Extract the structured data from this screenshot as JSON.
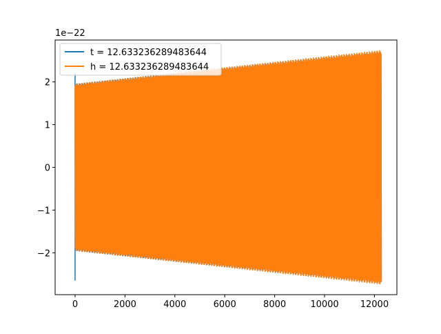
{
  "chart_data": {
    "type": "line",
    "title": "",
    "xlabel": "",
    "ylabel": "",
    "y_offset_label": "1e−22",
    "xlim": [
      -800,
      12900
    ],
    "ylim": [
      -2.98,
      2.98
    ],
    "x_ticks": [
      0,
      2000,
      4000,
      6000,
      8000,
      10000,
      12000
    ],
    "x_tick_labels": [
      "0",
      "2000",
      "4000",
      "6000",
      "8000",
      "10000",
      "12000"
    ],
    "y_ticks": [
      -2,
      -1,
      0,
      1,
      2
    ],
    "y_tick_labels": [
      "−2",
      "−1",
      "0",
      "1",
      "2"
    ],
    "grid": false,
    "legend_position": "upper-left",
    "series": [
      {
        "name": "t = 12.633236289483644",
        "color": "#1f77b4",
        "x_range": [
          0,
          12290
        ],
        "envelope_start": 1.96,
        "envelope_end": 2.72,
        "initial_transient": [
          {
            "x": 0,
            "y": 2.2
          },
          {
            "x": 0,
            "y": -2.65
          }
        ]
      },
      {
        "name": "h = 12.633236289483644",
        "color": "#ff7f0e",
        "x_range": [
          0,
          12290
        ],
        "envelope_start": 1.96,
        "envelope_end": 2.75
      }
    ]
  }
}
